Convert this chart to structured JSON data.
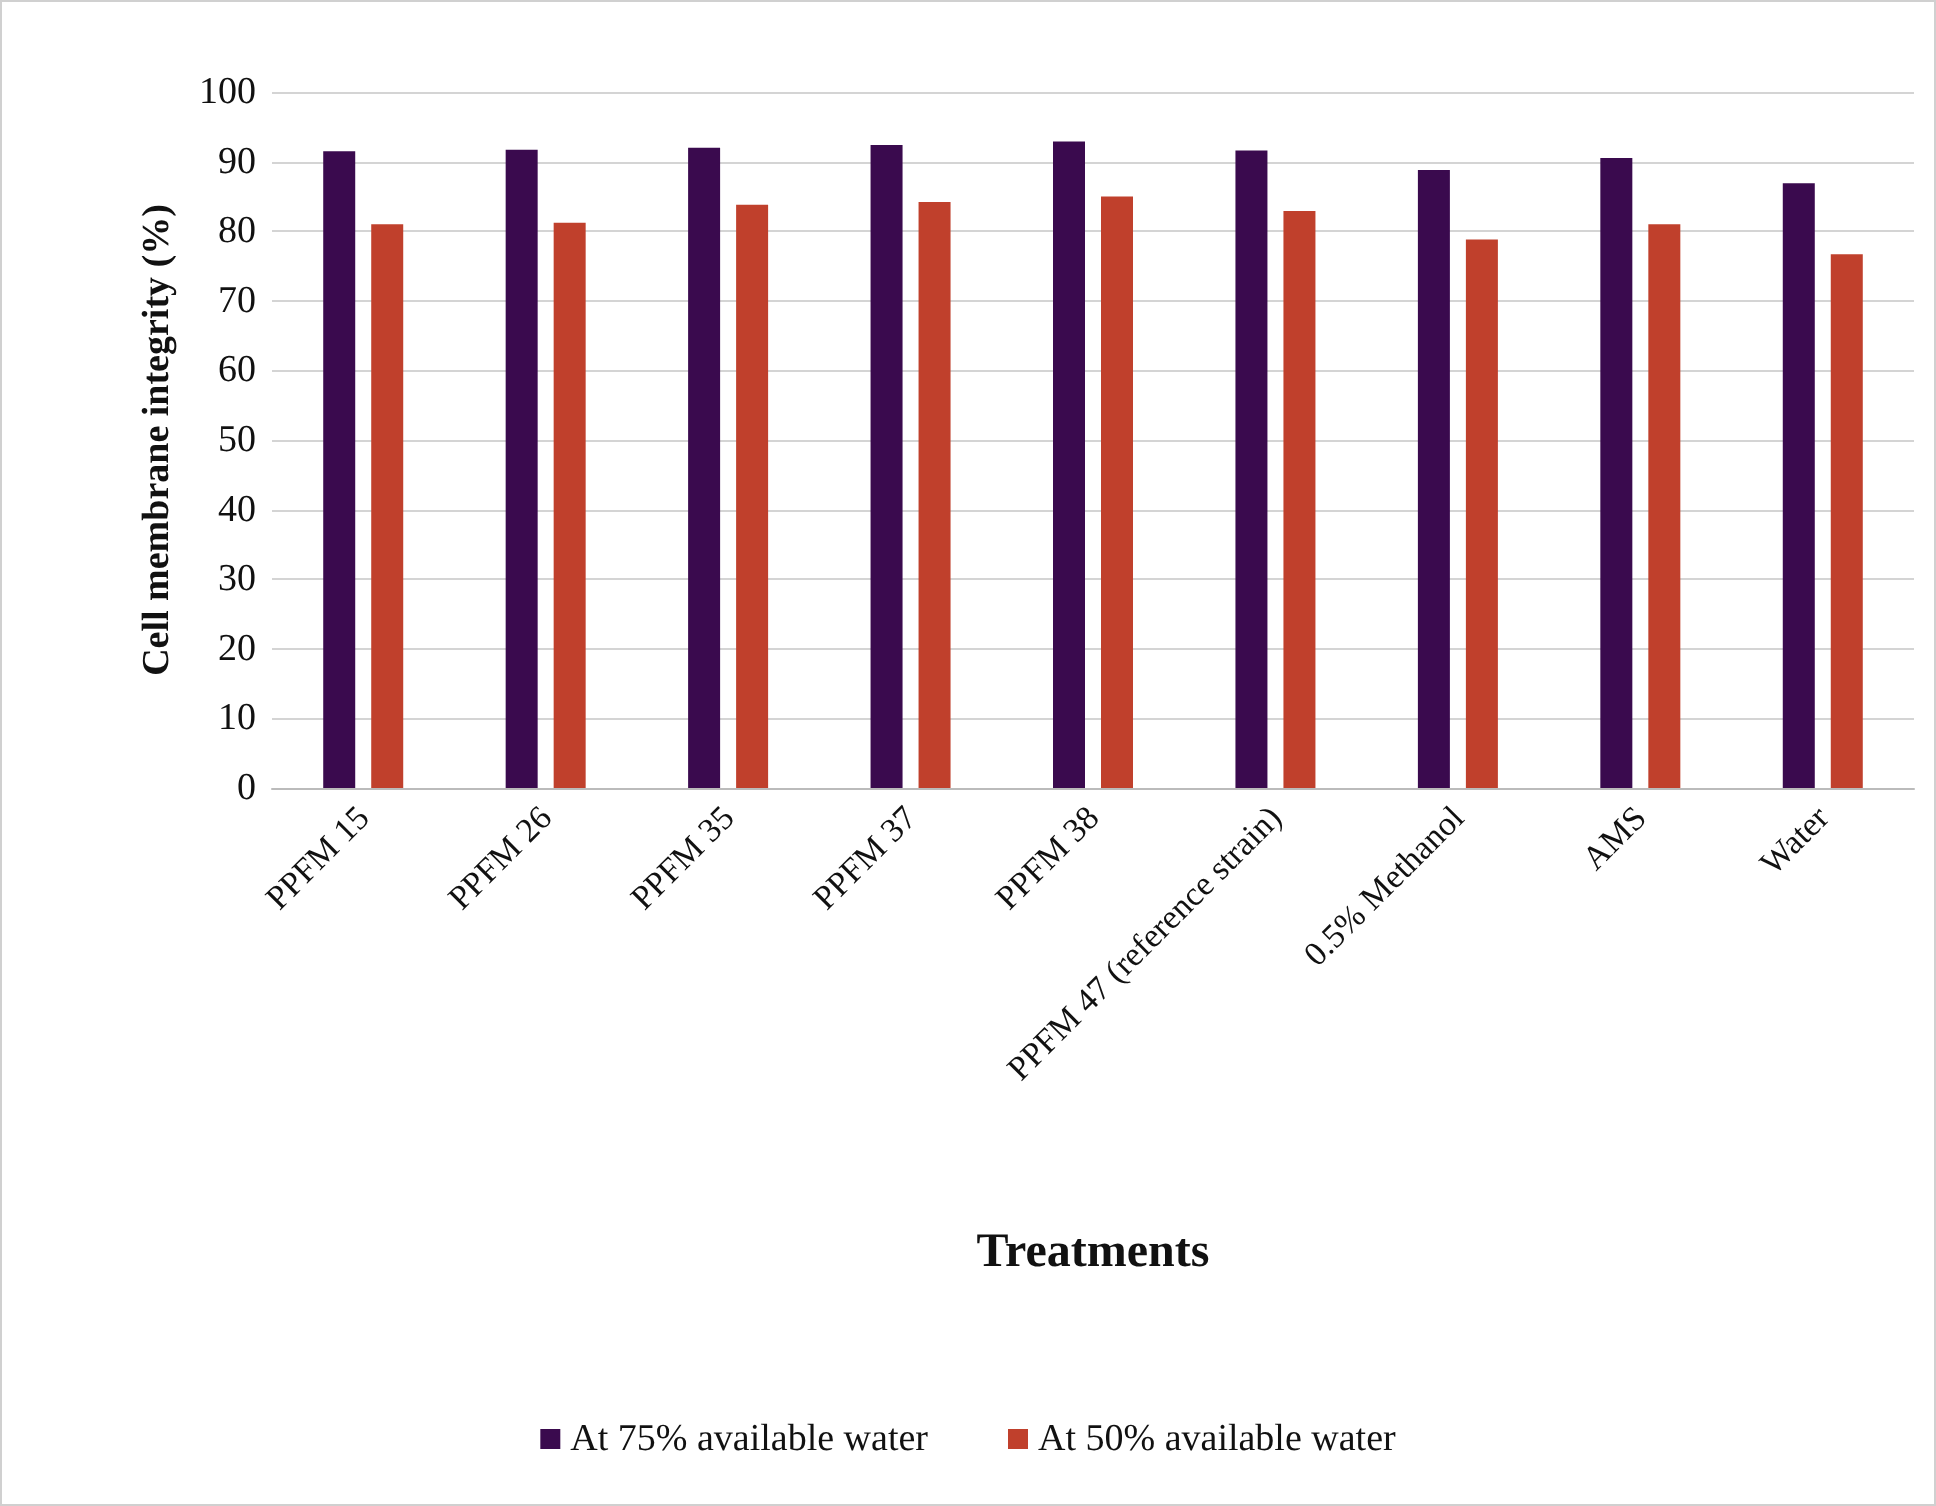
{
  "chart_data": {
    "type": "bar",
    "xlabel": "Treatments",
    "ylabel": "Cell membrane integrity (%)",
    "categories": [
      "PPFM 15",
      "PPFM 26",
      "PPFM 35",
      "PPFM 37",
      "PPFM 38",
      "PPFM 47 (reference strain)",
      "0.5% Methanol",
      "AMS",
      "Water"
    ],
    "series": [
      {
        "name": "At 75% available water",
        "color": "#3a0a4e",
        "values": [
          91.5,
          91.7,
          92,
          92.4,
          92.9,
          91.6,
          88.8,
          90.5,
          86.9
        ]
      },
      {
        "name": "At 50% available water",
        "color": "#c0402c",
        "values": [
          81,
          81.2,
          83.8,
          84.2,
          85,
          82.9,
          78.8,
          81,
          76.7
        ]
      }
    ],
    "ylim": [
      0,
      100
    ],
    "yticks": [
      0,
      10,
      20,
      30,
      40,
      50,
      60,
      70,
      80,
      90,
      100
    ],
    "grid": "y",
    "legend": "bottom"
  }
}
